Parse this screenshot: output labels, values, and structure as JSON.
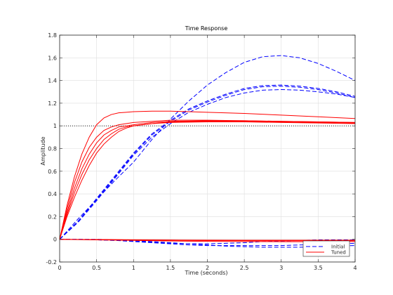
{
  "chart_data": {
    "type": "line",
    "title": "Time Response",
    "xlabel": "Time (seconds)",
    "ylabel": "Amplitude",
    "xlim": [
      0,
      4
    ],
    "ylim": [
      -0.2,
      1.8
    ],
    "xticks": [
      0,
      0.5,
      1,
      1.5,
      2,
      2.5,
      3,
      3.5,
      4
    ],
    "xtick_labels": [
      "0",
      "0.5",
      "1",
      "1.5",
      "2",
      "2.5",
      "3",
      "3.5",
      "4"
    ],
    "yticks": [
      -0.2,
      0,
      0.2,
      0.4,
      0.6,
      0.8,
      1,
      1.2,
      1.4,
      1.6,
      1.8
    ],
    "ytick_labels": [
      "-0.2",
      "0",
      "0.2",
      "0.4",
      "0.6",
      "0.8",
      "1",
      "1.2",
      "1.4",
      "1.6",
      "1.8"
    ],
    "grid": true,
    "reference_line": {
      "y": 1,
      "style": "dotted",
      "color": "#000000"
    },
    "legend": {
      "placement": "bottom-right",
      "entries": [
        {
          "label": "Initial",
          "color": "#0000ff",
          "style": "dashed"
        },
        {
          "label": "Tuned",
          "color": "#ff0000",
          "style": "solid"
        }
      ]
    },
    "series": [
      {
        "group": "Initial",
        "color": "#0000ff",
        "style": "dashed",
        "x": [
          0,
          0.25,
          0.5,
          0.75,
          1,
          1.25,
          1.5,
          1.75,
          2,
          2.25,
          2.5,
          2.75,
          3,
          3.25,
          3.5,
          3.75,
          4
        ],
        "y": [
          0,
          0.18,
          0.35,
          0.52,
          0.68,
          0.88,
          1.06,
          1.22,
          1.36,
          1.47,
          1.56,
          1.61,
          1.62,
          1.6,
          1.55,
          1.48,
          1.4
        ]
      },
      {
        "group": "Initial",
        "color": "#0000ff",
        "style": "dashed",
        "x": [
          0,
          0.25,
          0.5,
          0.75,
          1,
          1.25,
          1.5,
          1.75,
          2,
          2.25,
          2.5,
          2.75,
          3,
          3.25,
          3.5,
          3.75,
          4
        ],
        "y": [
          0,
          0.16,
          0.36,
          0.56,
          0.76,
          0.93,
          1.05,
          1.15,
          1.22,
          1.28,
          1.33,
          1.355,
          1.36,
          1.35,
          1.33,
          1.3,
          1.26
        ]
      },
      {
        "group": "Initial",
        "color": "#0000ff",
        "style": "dashed",
        "x": [
          0,
          0.25,
          0.5,
          0.75,
          1,
          1.25,
          1.5,
          1.75,
          2,
          2.25,
          2.5,
          2.75,
          3,
          3.25,
          3.5,
          3.75,
          4
        ],
        "y": [
          0,
          0.16,
          0.35,
          0.55,
          0.75,
          0.92,
          1.04,
          1.14,
          1.21,
          1.27,
          1.32,
          1.345,
          1.35,
          1.34,
          1.32,
          1.29,
          1.25
        ]
      },
      {
        "group": "Initial",
        "color": "#0000ff",
        "style": "dashed",
        "x": [
          0,
          0.25,
          0.5,
          0.75,
          1,
          1.25,
          1.5,
          1.75,
          2,
          2.25,
          2.5,
          2.75,
          3,
          3.25,
          3.5,
          3.75,
          4
        ],
        "y": [
          0,
          0.15,
          0.34,
          0.54,
          0.74,
          0.9,
          1.02,
          1.12,
          1.19,
          1.25,
          1.29,
          1.315,
          1.32,
          1.315,
          1.3,
          1.28,
          1.25
        ]
      },
      {
        "group": "Initial",
        "color": "#0000ff",
        "style": "dashed",
        "x": [
          0,
          0.25,
          0.5,
          0.75,
          1,
          1.25,
          1.5,
          1.75,
          2,
          2.25,
          2.5,
          2.75,
          3,
          3.25,
          3.5,
          3.75,
          4
        ],
        "y": [
          0,
          0,
          -0.005,
          -0.01,
          -0.015,
          -0.025,
          -0.035,
          -0.04,
          -0.04,
          -0.035,
          -0.03,
          -0.02,
          -0.015,
          -0.01,
          -0.005,
          -0.005,
          -0.005
        ]
      },
      {
        "group": "Initial",
        "color": "#0000ff",
        "style": "dashed",
        "x": [
          0,
          0.25,
          0.5,
          0.75,
          1,
          1.25,
          1.5,
          1.75,
          2,
          2.25,
          2.5,
          2.75,
          3,
          3.25,
          3.5,
          3.75,
          4
        ],
        "y": [
          0,
          0,
          -0.005,
          -0.01,
          -0.02,
          -0.03,
          -0.04,
          -0.05,
          -0.055,
          -0.055,
          -0.055,
          -0.055,
          -0.055,
          -0.05,
          -0.045,
          -0.04,
          -0.035
        ]
      },
      {
        "group": "Initial",
        "color": "#0000ff",
        "style": "dashed",
        "x": [
          0,
          0.25,
          0.5,
          0.75,
          1,
          1.25,
          1.5,
          1.75,
          2,
          2.25,
          2.5,
          2.75,
          3,
          3.25,
          3.5,
          3.75,
          4
        ],
        "y": [
          0,
          0,
          0,
          -0.005,
          -0.01,
          -0.02,
          -0.03,
          -0.04,
          -0.05,
          -0.06,
          -0.065,
          -0.07,
          -0.07,
          -0.07,
          -0.065,
          -0.06,
          -0.055
        ]
      },
      {
        "group": "Tuned",
        "color": "#ff0000",
        "style": "solid",
        "x": [
          0,
          0.1,
          0.2,
          0.3,
          0.4,
          0.5,
          0.6,
          0.7,
          0.8,
          0.9,
          1,
          1.25,
          1.5,
          2,
          2.5,
          3,
          3.5,
          4
        ],
        "y": [
          0,
          0.3,
          0.55,
          0.75,
          0.9,
          1.01,
          1.07,
          1.1,
          1.115,
          1.12,
          1.125,
          1.13,
          1.13,
          1.12,
          1.11,
          1.095,
          1.08,
          1.065
        ]
      },
      {
        "group": "Tuned",
        "color": "#ff0000",
        "style": "solid",
        "x": [
          0,
          0.1,
          0.2,
          0.3,
          0.4,
          0.5,
          0.6,
          0.7,
          0.8,
          0.9,
          1,
          1.25,
          1.5,
          2,
          2.5,
          3,
          3.5,
          4
        ],
        "y": [
          0,
          0.27,
          0.5,
          0.68,
          0.81,
          0.9,
          0.96,
          0.99,
          1.01,
          1.02,
          1.03,
          1.04,
          1.05,
          1.05,
          1.045,
          1.04,
          1.035,
          1.03
        ]
      },
      {
        "group": "Tuned",
        "color": "#ff0000",
        "style": "solid",
        "x": [
          0,
          0.1,
          0.2,
          0.3,
          0.4,
          0.5,
          0.6,
          0.7,
          0.8,
          0.9,
          1,
          1.25,
          1.5,
          2,
          2.5,
          3,
          3.5,
          4
        ],
        "y": [
          0,
          0.24,
          0.45,
          0.62,
          0.75,
          0.85,
          0.92,
          0.96,
          0.99,
          1.0,
          1.01,
          1.03,
          1.04,
          1.045,
          1.045,
          1.04,
          1.035,
          1.03
        ]
      },
      {
        "group": "Tuned",
        "color": "#ff0000",
        "style": "solid",
        "x": [
          0,
          0.1,
          0.2,
          0.3,
          0.4,
          0.5,
          0.6,
          0.7,
          0.8,
          0.9,
          1,
          1.25,
          1.5,
          2,
          2.5,
          3,
          3.5,
          4
        ],
        "y": [
          0,
          0.22,
          0.41,
          0.57,
          0.7,
          0.8,
          0.88,
          0.93,
          0.97,
          0.99,
          1.0,
          1.02,
          1.035,
          1.04,
          1.04,
          1.035,
          1.03,
          1.025
        ]
      },
      {
        "group": "Tuned",
        "color": "#ff0000",
        "style": "solid",
        "x": [
          0,
          0.1,
          0.2,
          0.3,
          0.4,
          0.5,
          0.6,
          0.7,
          0.8,
          0.9,
          1,
          1.25,
          1.5,
          2,
          2.5,
          3,
          3.5,
          4
        ],
        "y": [
          0,
          0.2,
          0.37,
          0.52,
          0.65,
          0.76,
          0.84,
          0.9,
          0.95,
          0.98,
          1.0,
          1.02,
          1.03,
          1.035,
          1.035,
          1.03,
          1.025,
          1.02
        ]
      },
      {
        "group": "Tuned",
        "color": "#ff0000",
        "style": "solid",
        "x": [
          0,
          0.5,
          1,
          1.5,
          2,
          2.5,
          3,
          3.5,
          4
        ],
        "y": [
          0,
          -0.003,
          -0.006,
          -0.009,
          -0.011,
          -0.012,
          -0.013,
          -0.013,
          -0.012
        ]
      },
      {
        "group": "Tuned",
        "color": "#ff0000",
        "style": "solid",
        "x": [
          0,
          0.5,
          1,
          1.5,
          2,
          2.5,
          3,
          3.5,
          4
        ],
        "y": [
          0,
          -0.005,
          -0.01,
          -0.015,
          -0.018,
          -0.02,
          -0.021,
          -0.021,
          -0.02
        ]
      },
      {
        "group": "Tuned",
        "color": "#ff0000",
        "style": "solid",
        "x": [
          0,
          0.5,
          1,
          1.5,
          2,
          2.5,
          3,
          3.5,
          4
        ],
        "y": [
          0,
          -0.002,
          -0.004,
          -0.006,
          -0.007,
          -0.008,
          -0.008,
          -0.008,
          -0.008
        ]
      }
    ]
  }
}
